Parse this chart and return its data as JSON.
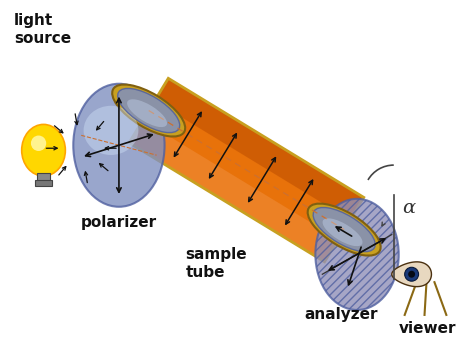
{
  "bg_color": "#ffffff",
  "labels": {
    "light_source": "light\nsource",
    "polarizer": "polarizer",
    "sample_tube": "sample\ntube",
    "analyzer": "analyzer",
    "viewer": "viewer",
    "alpha": "α"
  },
  "colors": {
    "tube_orange": "#E8720A",
    "tube_highlight": "#F09040",
    "tube_dark": "#B84A00",
    "tube_ring": "#C8A020",
    "tube_ring_dark": "#806010",
    "disc_blue_light": "#A0B8D8",
    "disc_blue_mid": "#8090C0",
    "disc_blue_dark": "#5060A0",
    "disc_blue_very_light": "#C8D8F0",
    "analyzer_fill": "#9090B8",
    "bulb_yellow": "#FFD700",
    "bulb_orange": "#FFA500",
    "arrow_color": "#111111",
    "label_color": "#111111",
    "alpha_line_color": "#444444",
    "dashed_color": "#CC7030"
  }
}
